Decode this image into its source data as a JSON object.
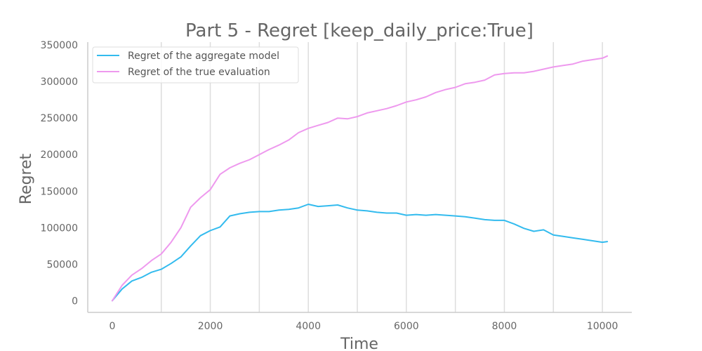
{
  "chart_data": {
    "type": "line",
    "title": "Part 5 - Regret [keep_daily_price:True]",
    "xlabel": "Time",
    "ylabel": "Regret",
    "xlim": [
      -500,
      10600
    ],
    "ylim": [
      -16000,
      354000
    ],
    "xticks": [
      0,
      2000,
      4000,
      6000,
      8000,
      10000
    ],
    "xtick_labels": [
      "0",
      "2000",
      "4000",
      "6000",
      "8000",
      "10000"
    ],
    "yticks": [
      0,
      50000,
      100000,
      150000,
      200000,
      250000,
      300000,
      350000
    ],
    "ytick_labels": [
      "0",
      "50000",
      "100000",
      "150000",
      "200000",
      "250000",
      "300000",
      "350000"
    ],
    "vertical_grid": true,
    "legend_position": "top-left",
    "series": [
      {
        "name": "Regret of the aggregate model",
        "color": "#33bbee",
        "x": [
          0,
          200,
          400,
          600,
          800,
          1000,
          1200,
          1400,
          1600,
          1800,
          2000,
          2200,
          2400,
          2600,
          2800,
          3000,
          3200,
          3400,
          3600,
          3800,
          4000,
          4200,
          4400,
          4600,
          4800,
          5000,
          5200,
          5400,
          5600,
          5800,
          6000,
          6200,
          6400,
          6600,
          6800,
          7000,
          7200,
          7400,
          7600,
          7800,
          8000,
          8200,
          8400,
          8600,
          8800,
          9000,
          9200,
          9400,
          9600,
          9800,
          10000,
          10100
        ],
        "y": [
          0,
          16000,
          27000,
          32000,
          39000,
          43000,
          51000,
          60000,
          75000,
          89000,
          96000,
          101000,
          116000,
          119000,
          121000,
          122000,
          122000,
          124000,
          125000,
          127000,
          132000,
          129000,
          130000,
          131000,
          127000,
          124000,
          123000,
          121000,
          120000,
          120000,
          117000,
          118000,
          117000,
          118000,
          117000,
          116000,
          115000,
          113000,
          111000,
          110000,
          110000,
          105000,
          99000,
          95000,
          97000,
          90000,
          88000,
          86000,
          84000,
          82000,
          80000,
          81000
        ]
      },
      {
        "name": "Regret of the true evaluation",
        "color": "#ee99ee",
        "x": [
          0,
          200,
          400,
          600,
          800,
          1000,
          1200,
          1400,
          1600,
          1800,
          2000,
          2200,
          2400,
          2600,
          2800,
          3000,
          3200,
          3400,
          3600,
          3800,
          4000,
          4200,
          4400,
          4600,
          4800,
          5000,
          5200,
          5400,
          5600,
          5800,
          6000,
          6200,
          6400,
          6600,
          6800,
          7000,
          7200,
          7400,
          7600,
          7800,
          8000,
          8200,
          8400,
          8600,
          8800,
          9000,
          9200,
          9400,
          9600,
          9800,
          10000,
          10100
        ],
        "y": [
          0,
          21000,
          35000,
          44000,
          55000,
          64000,
          80000,
          100000,
          128000,
          141000,
          152000,
          173000,
          182000,
          188000,
          193000,
          200000,
          207000,
          213000,
          220000,
          230000,
          236000,
          240000,
          244000,
          250000,
          249000,
          252000,
          257000,
          260000,
          263000,
          267000,
          272000,
          275000,
          279000,
          285000,
          289000,
          292000,
          297000,
          299000,
          302000,
          309000,
          311000,
          312000,
          312000,
          314000,
          317000,
          320000,
          322000,
          324000,
          328000,
          330000,
          332000,
          335000
        ]
      }
    ]
  }
}
